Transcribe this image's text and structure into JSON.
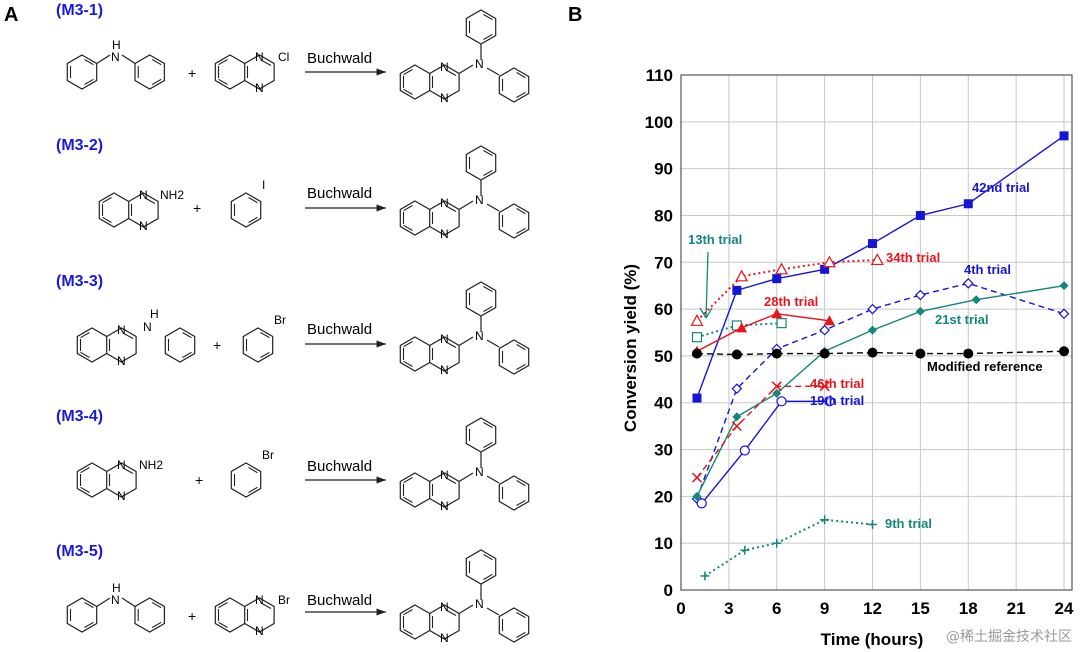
{
  "panel_a": {
    "letter": "A",
    "reactions": [
      {
        "label": "(M3-1)",
        "arrow": "Buchwald",
        "plus": "+",
        "atoms": {
          "r1": "H",
          "r1b": "N",
          "r2": "Cl",
          "n1": "N",
          "n2": "N",
          "p": "N",
          "pn1": "N",
          "pn2": "N"
        }
      },
      {
        "label": "(M3-2)",
        "arrow": "Buchwald",
        "plus": "+",
        "atoms": {
          "r1": "NH2",
          "n1": "N",
          "n2": "N",
          "r2": "I",
          "p": "N",
          "pn1": "N",
          "pn2": "N"
        }
      },
      {
        "label": "(M3-3)",
        "arrow": "Buchwald",
        "plus": "+",
        "atoms": {
          "r1": "H",
          "r1b": "N",
          "n1": "N",
          "n2": "N",
          "r2": "Br",
          "p": "N",
          "pn1": "N",
          "pn2": "N"
        }
      },
      {
        "label": "(M3-4)",
        "arrow": "Buchwald",
        "plus": "+",
        "atoms": {
          "r1": "NH2",
          "n1": "N",
          "n2": "N",
          "r2": "Br",
          "p": "N",
          "pn1": "N",
          "pn2": "N"
        }
      },
      {
        "label": "(M3-5)",
        "arrow": "Buchwald",
        "plus": "+",
        "atoms": {
          "r1": "H",
          "r1b": "N",
          "r2": "Br",
          "n1": "N",
          "n2": "N",
          "p": "N",
          "pn1": "N",
          "pn2": "N"
        }
      }
    ]
  },
  "panel_b": {
    "letter": "B"
  },
  "chart_data": {
    "type": "line",
    "title": "",
    "xlabel": "Time (hours)",
    "ylabel": "Conversion yield (%)",
    "xlim": [
      0,
      24.5
    ],
    "ylim": [
      0,
      110
    ],
    "xticks": [
      0,
      3,
      6,
      9,
      12,
      15,
      18,
      21,
      24
    ],
    "yticks": [
      0,
      10,
      20,
      30,
      40,
      50,
      60,
      70,
      80,
      90,
      100,
      110
    ],
    "grid": true,
    "series": [
      {
        "name": "42nd trial",
        "color": "#1515d6",
        "dash": "solid",
        "marker": "square-filled",
        "x": [
          1,
          3.5,
          6,
          9,
          12,
          15,
          18,
          24
        ],
        "y": [
          41,
          64,
          66.5,
          68.5,
          74,
          80,
          82.5,
          97
        ]
      },
      {
        "name": "34th trial",
        "color": "#e8131b",
        "dash": "dotted",
        "marker": "triangle-open",
        "x": [
          1,
          3.8,
          6.3,
          9.3,
          12.3
        ],
        "y": [
          57.5,
          67,
          68.5,
          70,
          70.5
        ]
      },
      {
        "name": "13th trial",
        "color": "#14877a",
        "dash": "dotted",
        "marker": "square-open",
        "x": [
          1,
          3.5,
          6.3
        ],
        "y": [
          54,
          56.5,
          57
        ]
      },
      {
        "name": "28th trial",
        "color": "#e8131b",
        "dash": "solid",
        "marker": "triangle-filled",
        "x": [
          1,
          3.8,
          6,
          9.3
        ],
        "y": [
          51,
          56,
          59,
          57.5
        ]
      },
      {
        "name": "4th trial",
        "color": "#1515d6",
        "dash": "dashed",
        "marker": "diamond-open",
        "x": [
          1,
          3.5,
          6,
          9,
          12,
          15,
          18,
          24
        ],
        "y": [
          19.5,
          43,
          51.5,
          55.5,
          60,
          63,
          65.5,
          59
        ]
      },
      {
        "name": "21st trial",
        "color": "#14877a",
        "dash": "solid",
        "marker": "diamond-filled",
        "x": [
          1,
          3.5,
          6,
          9,
          12,
          15,
          18.5,
          24
        ],
        "y": [
          20,
          37,
          42,
          51,
          55.5,
          59.5,
          62,
          65
        ]
      },
      {
        "name": "Modified reference",
        "color": "#000000",
        "dash": "dashed",
        "marker": "circle-filled",
        "x": [
          1,
          3.5,
          6,
          9,
          12,
          15,
          18,
          24
        ],
        "y": [
          50.5,
          50.3,
          50.5,
          50.5,
          50.7,
          50.5,
          50.5,
          51
        ]
      },
      {
        "name": "46th trial",
        "color": "#e8131b",
        "dash": "dashed",
        "marker": "x",
        "x": [
          1,
          3.5,
          6,
          9
        ],
        "y": [
          24,
          35,
          43.5,
          43.5
        ]
      },
      {
        "name": "19th trial",
        "color": "#1515d6",
        "dash": "solid",
        "marker": "circle-open",
        "x": [
          1.3,
          4,
          6.3,
          9.3
        ],
        "y": [
          18.5,
          29.8,
          40.3,
          40.3
        ]
      },
      {
        "name": "9th trial",
        "color": "#14877a",
        "dash": "dotted",
        "marker": "plus",
        "x": [
          1.5,
          4,
          6,
          9,
          12
        ],
        "y": [
          3,
          8.5,
          10,
          15,
          14
        ]
      }
    ],
    "annotations": [
      "42nd trial",
      "34th trial",
      "13th trial",
      "28th trial",
      "4th trial",
      "21st trial",
      "Modified reference",
      "46th trial",
      "19th trial",
      "9th trial"
    ]
  },
  "watermark": "@稀土掘金技术社区"
}
